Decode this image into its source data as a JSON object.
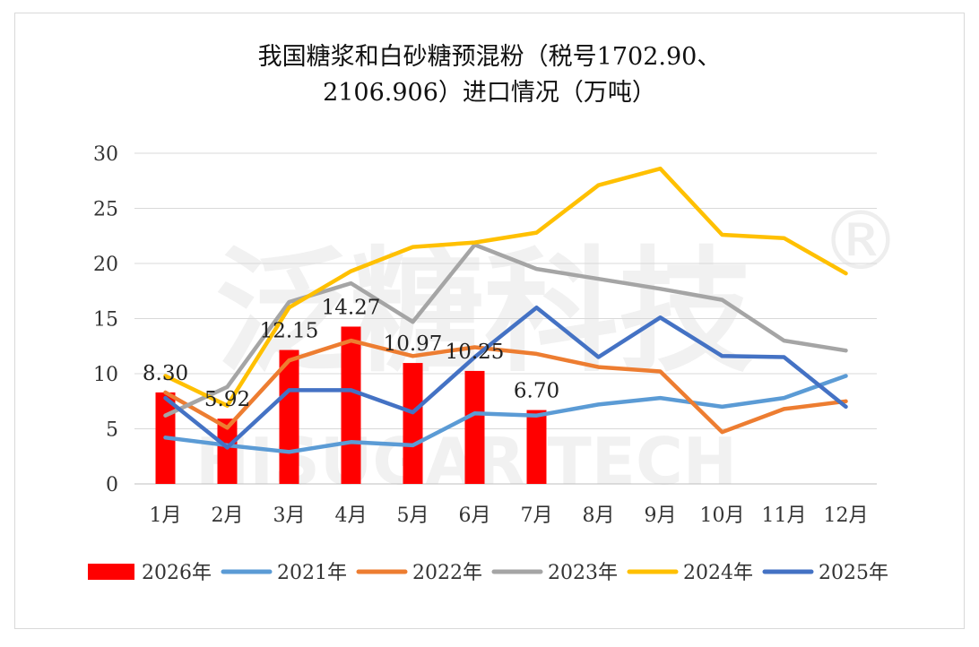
{
  "chart_data": {
    "type": "bar+line",
    "title_lines": [
      "我国糖浆和白砂糖预混粉（税号1702.90、",
      "2106.906）进口情况（万吨）"
    ],
    "categories": [
      "1月",
      "2月",
      "3月",
      "4月",
      "5月",
      "6月",
      "7月",
      "8月",
      "9月",
      "10月",
      "11月",
      "12月"
    ],
    "ylim": [
      0,
      30
    ],
    "yticks": [
      0,
      5,
      10,
      15,
      20,
      25,
      30
    ],
    "grid": true,
    "legend_position": "bottom",
    "bar_series": {
      "name": "2026年",
      "color": "#ff0000",
      "values": [
        8.3,
        5.92,
        12.15,
        14.27,
        10.97,
        10.25,
        6.7
      ],
      "labels": [
        "8.30",
        "5.92",
        "12.15",
        "14.27",
        "10.97",
        "10.25",
        "6.70"
      ]
    },
    "line_series": [
      {
        "name": "2021年",
        "color": "#5b9bd5",
        "values": [
          4.2,
          3.5,
          2.9,
          3.8,
          3.5,
          6.4,
          6.2,
          7.2,
          7.8,
          7.0,
          7.8,
          9.8
        ]
      },
      {
        "name": "2022年",
        "color": "#ed7d31",
        "values": [
          8.3,
          5.1,
          11.2,
          13.0,
          11.6,
          12.4,
          11.8,
          10.6,
          10.2,
          4.7,
          6.8,
          7.5
        ]
      },
      {
        "name": "2023年",
        "color": "#a5a5a5",
        "values": [
          6.2,
          8.8,
          16.5,
          18.2,
          14.7,
          21.7,
          19.5,
          18.6,
          17.7,
          16.7,
          13.0,
          12.1
        ]
      },
      {
        "name": "2024年",
        "color": "#ffc000",
        "values": [
          9.8,
          7.1,
          16.0,
          19.3,
          21.5,
          21.9,
          22.8,
          27.1,
          28.6,
          22.6,
          22.3,
          19.1
        ]
      },
      {
        "name": "2025年",
        "color": "#4472c4",
        "values": [
          7.8,
          3.3,
          8.5,
          8.5,
          6.5,
          11.5,
          16.0,
          11.5,
          15.1,
          11.6,
          11.5,
          7.0
        ]
      }
    ],
    "legend_order": [
      "2026年",
      "2021年",
      "2022年",
      "2023年",
      "2024年",
      "2025年"
    ],
    "watermark": [
      "泛糖科技",
      "HISUGAR TECH",
      "®"
    ]
  }
}
